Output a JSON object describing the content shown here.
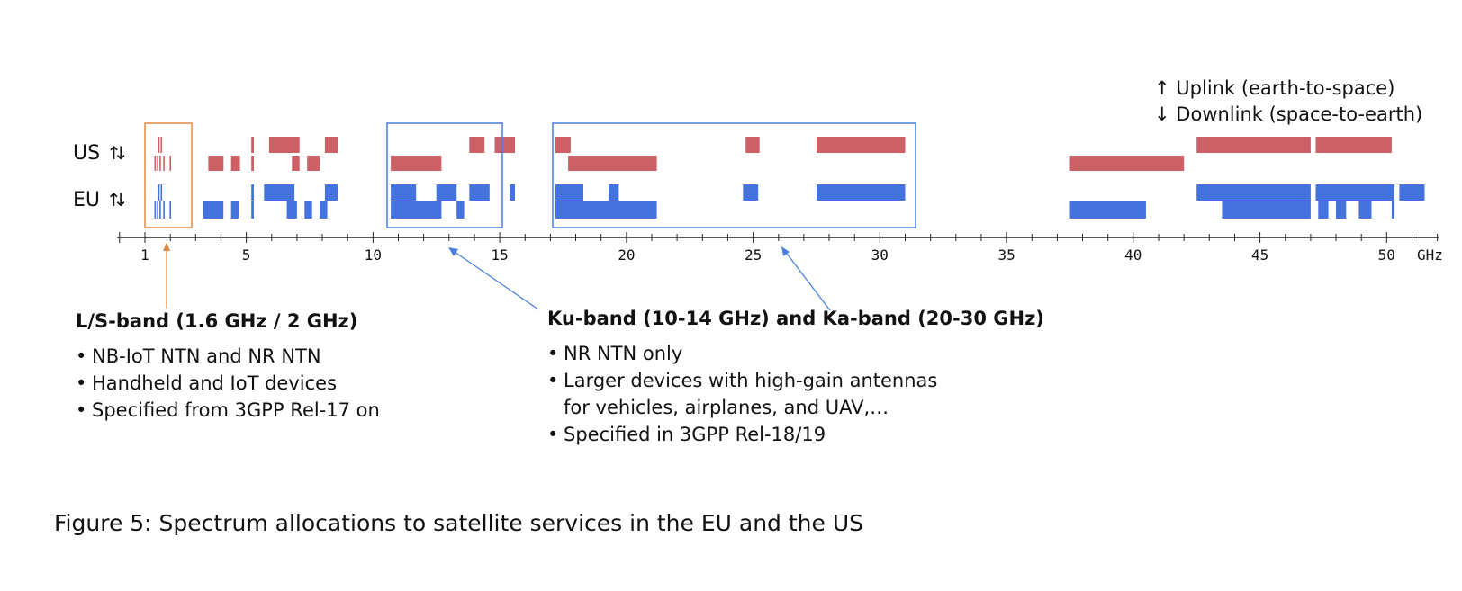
{
  "legend": {
    "uplink": "Uplink (earth-to-space)",
    "downlink": "Downlink (space-to-earth)",
    "uplink_arrow": "↑",
    "downlink_arrow": "↓"
  },
  "regions": [
    {
      "label": "US",
      "arrows": "↑↓"
    },
    {
      "label": "EU",
      "arrows": "↑↓"
    }
  ],
  "axis": {
    "unit": "GHz",
    "ticks": [
      {
        "value": 1,
        "label": "1"
      },
      {
        "value": 5,
        "label": "5"
      },
      {
        "value": 10,
        "label": "10"
      },
      {
        "value": 15,
        "label": "15"
      },
      {
        "value": 20,
        "label": "20"
      },
      {
        "value": 25,
        "label": "25"
      },
      {
        "value": 30,
        "label": "30"
      },
      {
        "value": 35,
        "label": "35"
      },
      {
        "value": 40,
        "label": "40"
      },
      {
        "value": 45,
        "label": "45"
      },
      {
        "value": 50,
        "label": "50"
      }
    ],
    "range": [
      0,
      52
    ]
  },
  "colors": {
    "us": "#cd5f66",
    "eu": "#4473e0",
    "ls_box": "#e08a44",
    "ku_ka_box": "#4c7fe0",
    "axis": "#222222"
  },
  "allocations": {
    "us_up": [
      [
        5.2,
        5.3
      ],
      [
        5.9,
        7.1
      ],
      [
        8.1,
        8.6
      ],
      [
        13.8,
        14.4
      ],
      [
        14.8,
        15.6
      ],
      [
        17.3,
        17.8
      ],
      [
        17.2,
        17.7
      ],
      [
        24.7,
        25.25
      ],
      [
        27.5,
        31.0
      ],
      [
        42.5,
        47.0
      ],
      [
        47.2,
        50.2
      ]
    ],
    "us_down": [
      [
        3.5,
        4.1
      ],
      [
        4.4,
        4.75
      ],
      [
        5.2,
        5.3
      ],
      [
        6.8,
        7.1
      ],
      [
        7.4,
        7.9
      ],
      [
        10.7,
        12.7
      ],
      [
        17.7,
        21.2
      ],
      [
        37.5,
        42.0
      ]
    ],
    "eu_up": [
      [
        5.2,
        5.3
      ],
      [
        5.7,
        6.9
      ],
      [
        8.1,
        8.6
      ],
      [
        10.7,
        11.7
      ],
      [
        12.5,
        13.3
      ],
      [
        13.8,
        14.6
      ],
      [
        15.4,
        15.6
      ],
      [
        17.2,
        18.3
      ],
      [
        19.3,
        19.7
      ],
      [
        24.6,
        25.2
      ],
      [
        27.5,
        31.0
      ],
      [
        42.5,
        47.0
      ],
      [
        47.2,
        50.3
      ],
      [
        50.5,
        51.5
      ]
    ],
    "eu_down": [
      [
        3.3,
        4.1
      ],
      [
        4.4,
        4.7
      ],
      [
        5.2,
        5.3
      ],
      [
        6.6,
        7.0
      ],
      [
        7.3,
        7.6
      ],
      [
        7.9,
        8.2
      ],
      [
        10.7,
        12.7
      ],
      [
        13.3,
        13.6
      ],
      [
        17.2,
        21.2
      ],
      [
        37.5,
        40.5
      ],
      [
        43.5,
        47.0
      ],
      [
        47.3,
        47.7
      ],
      [
        48.0,
        48.4
      ],
      [
        48.9,
        49.4
      ],
      [
        50.2,
        50.3
      ]
    ],
    "ls_ticks": {
      "us_up": [
        1.55,
        1.65
      ],
      "us_down": [
        1.4,
        1.5,
        1.6,
        1.75,
        2.0
      ],
      "eu_up": [
        1.55,
        1.65
      ],
      "eu_down": [
        1.4,
        1.5,
        1.6,
        1.75,
        2.0
      ]
    }
  },
  "callouts": {
    "ls_band": {
      "title": "L/S-band (1.6 GHz / 2 GHz)",
      "bullets": [
        "NB-IoT NTN and NR NTN",
        "Handheld and IoT devices",
        "Specified from 3GPP Rel-17 on"
      ]
    },
    "ku_ka_band": {
      "title": "Ku-band (10-14 GHz) and Ka-band (20-30 GHz)",
      "bullets": [
        {
          "text": "NR NTN only",
          "cont": ""
        },
        {
          "text": "Larger devices with high-gain antennas",
          "cont": "for vehicles, airplanes, and UAV,…"
        },
        {
          "text": "Specified in 3GPP Rel-18/19",
          "cont": ""
        }
      ]
    }
  },
  "caption": "Figure 5: Spectrum allocations to satellite services in the EU and the US"
}
